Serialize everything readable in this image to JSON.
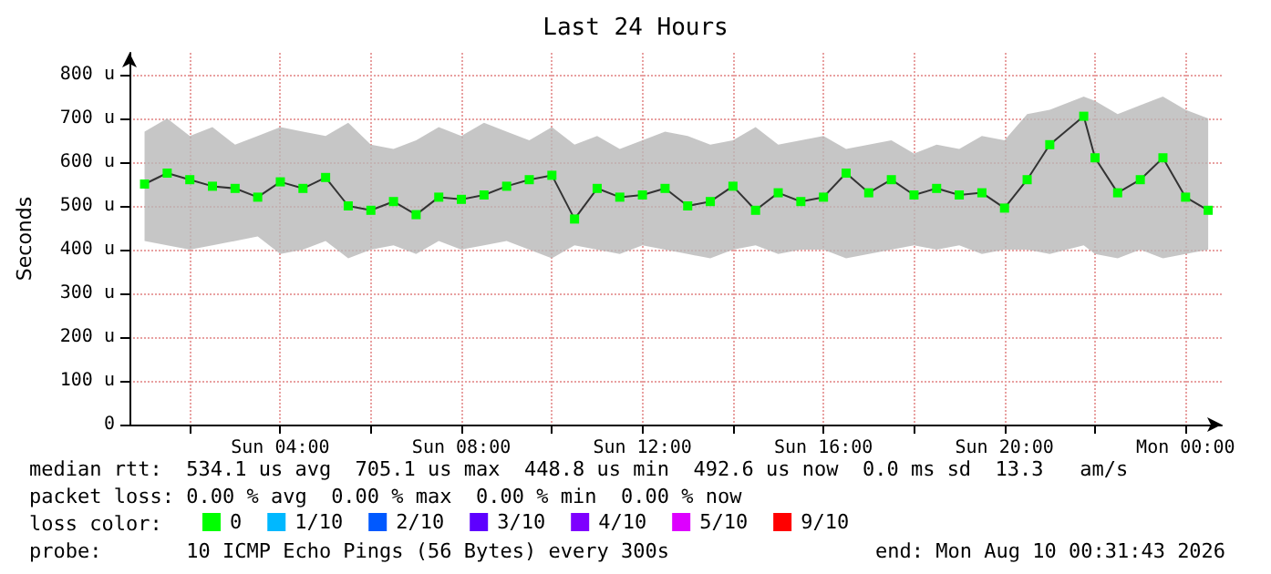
{
  "chart_data": {
    "type": "line",
    "title": "Last 24 Hours",
    "ylabel": "Seconds",
    "x": [
      "2026-08-09T01:00",
      "2026-08-09T01:30",
      "2026-08-09T02:00",
      "2026-08-09T02:30",
      "2026-08-09T03:00",
      "2026-08-09T03:30",
      "2026-08-09T04:00",
      "2026-08-09T04:30",
      "2026-08-09T05:00",
      "2026-08-09T05:30",
      "2026-08-09T06:00",
      "2026-08-09T06:30",
      "2026-08-09T07:00",
      "2026-08-09T07:30",
      "2026-08-09T08:00",
      "2026-08-09T08:30",
      "2026-08-09T09:00",
      "2026-08-09T09:30",
      "2026-08-09T10:00",
      "2026-08-09T10:30",
      "2026-08-09T11:00",
      "2026-08-09T11:30",
      "2026-08-09T12:00",
      "2026-08-09T12:30",
      "2026-08-09T13:00",
      "2026-08-09T13:30",
      "2026-08-09T14:00",
      "2026-08-09T14:30",
      "2026-08-09T15:00",
      "2026-08-09T15:30",
      "2026-08-09T16:00",
      "2026-08-09T16:30",
      "2026-08-09T17:00",
      "2026-08-09T17:30",
      "2026-08-09T18:00",
      "2026-08-09T18:30",
      "2026-08-09T19:00",
      "2026-08-09T19:30",
      "2026-08-09T20:00",
      "2026-08-09T20:30",
      "2026-08-09T21:00",
      "2026-08-09T21:45",
      "2026-08-09T22:00",
      "2026-08-09T22:30",
      "2026-08-09T23:00",
      "2026-08-09T23:30",
      "2026-08-10T00:00",
      "2026-08-10T00:30"
    ],
    "series": [
      {
        "name": "0",
        "color": "#00ff00",
        "values": [
          550,
          575,
          560,
          545,
          540,
          520,
          555,
          540,
          565,
          500,
          490,
          510,
          480,
          520,
          515,
          525,
          545,
          560,
          570,
          470,
          540,
          520,
          525,
          540,
          500,
          510,
          545,
          490,
          530,
          510,
          520,
          575,
          530,
          560,
          525,
          540,
          525,
          530,
          495,
          560,
          640,
          705,
          610,
          530,
          560,
          610,
          520,
          490
        ],
        "lower": [
          420,
          410,
          400,
          410,
          420,
          430,
          390,
          400,
          420,
          380,
          400,
          410,
          390,
          420,
          400,
          410,
          420,
          400,
          380,
          410,
          400,
          390,
          410,
          400,
          390,
          380,
          400,
          410,
          390,
          400,
          400,
          380,
          390,
          400,
          410,
          400,
          410,
          390,
          400,
          400,
          390,
          410,
          390,
          380,
          400,
          380,
          390,
          400
        ],
        "upper": [
          670,
          700,
          660,
          680,
          640,
          660,
          680,
          670,
          660,
          690,
          640,
          630,
          650,
          680,
          660,
          690,
          670,
          650,
          680,
          640,
          660,
          630,
          650,
          670,
          660,
          640,
          650,
          680,
          640,
          650,
          660,
          630,
          640,
          650,
          620,
          640,
          630,
          660,
          650,
          710,
          720,
          750,
          740,
          710,
          730,
          750,
          720,
          700
        ]
      },
      {
        "name": "1/10",
        "color": "#00b8ff",
        "values": [
          null,
          null,
          null,
          null,
          null,
          null,
          null,
          null,
          null,
          null,
          null,
          null,
          null,
          null,
          null,
          null,
          null,
          null,
          null,
          null,
          null,
          null,
          null,
          null,
          null,
          null,
          null,
          null,
          null,
          null,
          null,
          null,
          null,
          null,
          null,
          null,
          null,
          null,
          null,
          null,
          null,
          null,
          null,
          null,
          null,
          null,
          null,
          null
        ]
      },
      {
        "name": "2/10",
        "color": "#0059ff",
        "values": [
          null,
          null,
          null,
          null,
          null,
          null,
          null,
          null,
          null,
          null,
          null,
          null,
          null,
          null,
          null,
          null,
          null,
          null,
          null,
          null,
          null,
          null,
          null,
          null,
          null,
          null,
          null,
          null,
          null,
          null,
          null,
          null,
          null,
          null,
          null,
          null,
          null,
          null,
          null,
          null,
          null,
          null,
          null,
          null,
          null,
          null,
          null,
          null
        ]
      },
      {
        "name": "3/10",
        "color": "#5e00ff",
        "values": [
          null,
          null,
          null,
          null,
          null,
          null,
          null,
          null,
          null,
          null,
          null,
          null,
          null,
          null,
          null,
          null,
          null,
          null,
          null,
          null,
          null,
          null,
          null,
          null,
          null,
          null,
          null,
          null,
          null,
          null,
          null,
          null,
          null,
          null,
          null,
          null,
          null,
          null,
          null,
          null,
          null,
          null,
          null,
          null,
          null,
          null,
          null,
          null
        ]
      },
      {
        "name": "4/10",
        "color": "#7e00ff",
        "values": [
          null,
          null,
          null,
          null,
          null,
          null,
          null,
          null,
          null,
          null,
          null,
          null,
          null,
          null,
          null,
          null,
          null,
          null,
          null,
          null,
          null,
          null,
          null,
          null,
          null,
          null,
          null,
          null,
          null,
          null,
          null,
          null,
          null,
          null,
          null,
          null,
          null,
          null,
          null,
          null,
          null,
          null,
          null,
          null,
          null,
          null,
          null,
          null
        ]
      },
      {
        "name": "5/10",
        "color": "#dd00ff",
        "values": [
          null,
          null,
          null,
          null,
          null,
          null,
          null,
          null,
          null,
          null,
          null,
          null,
          null,
          null,
          null,
          null,
          null,
          null,
          null,
          null,
          null,
          null,
          null,
          null,
          null,
          null,
          null,
          null,
          null,
          null,
          null,
          null,
          null,
          null,
          null,
          null,
          null,
          null,
          null,
          null,
          null,
          null,
          null,
          null,
          null,
          null,
          null,
          null
        ]
      },
      {
        "name": "9/10",
        "color": "#ff0000",
        "values": [
          null,
          null,
          null,
          null,
          null,
          null,
          null,
          null,
          null,
          null,
          null,
          null,
          null,
          null,
          null,
          null,
          null,
          null,
          null,
          null,
          null,
          null,
          null,
          null,
          null,
          null,
          null,
          null,
          null,
          null,
          null,
          null,
          null,
          null,
          null,
          null,
          null,
          null,
          null,
          null,
          null,
          null,
          null,
          null,
          null,
          null,
          null,
          null
        ]
      }
    ],
    "marker": "square",
    "legend": "bottom",
    "grid": true,
    "xlim": [
      "2026-08-09T00:40",
      "2026-08-10T00:48"
    ],
    "xticks": [
      {
        "value": "2026-08-09T02:00",
        "label": null
      },
      {
        "value": "2026-08-09T04:00",
        "label": "Sun 04:00"
      },
      {
        "value": "2026-08-09T06:00",
        "label": null
      },
      {
        "value": "2026-08-09T08:00",
        "label": "Sun 08:00"
      },
      {
        "value": "2026-08-09T10:00",
        "label": null
      },
      {
        "value": "2026-08-09T12:00",
        "label": "Sun 12:00"
      },
      {
        "value": "2026-08-09T14:00",
        "label": null
      },
      {
        "value": "2026-08-09T16:00",
        "label": "Sun 16:00"
      },
      {
        "value": "2026-08-09T18:00",
        "label": null
      },
      {
        "value": "2026-08-09T20:00",
        "label": "Sun 20:00"
      },
      {
        "value": "2026-08-09T22:00",
        "label": null
      },
      {
        "value": "2026-08-10T00:00",
        "label": "Mon 00:00"
      }
    ],
    "ylim": [
      0,
      850
    ],
    "yticks": [
      0,
      {
        "value": 100,
        "label": "100 u"
      },
      {
        "value": 200,
        "label": "200 u"
      },
      {
        "value": 300,
        "label": "300 u"
      },
      {
        "value": 400,
        "label": "400 u"
      },
      {
        "value": 500,
        "label": "500 u"
      },
      {
        "value": 600,
        "label": "600 u"
      },
      {
        "value": 700,
        "label": "700 u"
      },
      {
        "value": 800,
        "label": "800 u"
      }
    ],
    "annotations": [
      "median rtt:  534.1 us avg  705.1 us max  448.8 us min  492.6 us now  0.0 ms sd  13.3   am/s",
      "packet loss: 0.00 % avg  0.00 % max  0.00 % min  0.00 % now",
      "loss color:",
      "probe:       10 ICMP Echo Pings (56 Bytes) every 300s",
      "end: Mon Aug 10 00:31:43 2026"
    ]
  }
}
